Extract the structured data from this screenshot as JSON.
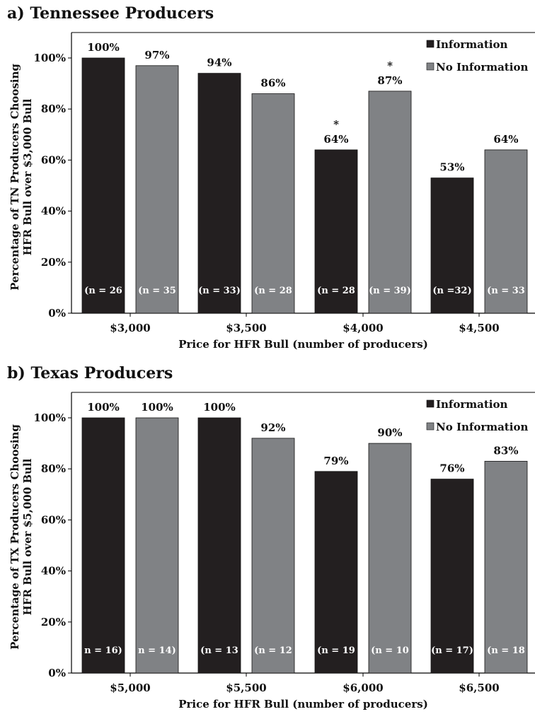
{
  "legend": {
    "info_label": "Information",
    "noinfo_label": "No Information"
  },
  "colors": {
    "info": "#231f20",
    "noinfo": "#808285",
    "axis": "#000000"
  },
  "chart_data": [
    {
      "type": "bar",
      "title": "a) Tennessee Producers",
      "xlabel": "Price for HFR Bull (number of producers)",
      "ylabel_line1": "Percentage of TN Producers Choosing",
      "ylabel_line2": "HFR Bull over $3,000 Bull",
      "ylim": [
        0,
        100
      ],
      "y_ticks": [
        "0%",
        "20%",
        "40%",
        "60%",
        "80%",
        "100%"
      ],
      "categories": [
        "$3,000",
        "$3,500",
        "$4,000",
        "$4,500"
      ],
      "legend_position": "top-right",
      "series": [
        {
          "name": "Information",
          "values": [
            100,
            94,
            64,
            53
          ],
          "value_labels": [
            "100%",
            "94%",
            "64%",
            "53%"
          ],
          "n_labels": [
            "(n = 26",
            "(n = 33)",
            "(n = 28",
            "(n =32)"
          ],
          "stars": [
            "",
            "",
            "*",
            ""
          ]
        },
        {
          "name": "No Information",
          "values": [
            97,
            86,
            87,
            64
          ],
          "value_labels": [
            "97%",
            "86%",
            "87%",
            "64%"
          ],
          "n_labels": [
            "(n = 35",
            "(n = 28",
            "(n = 39)",
            "(n = 33"
          ],
          "stars": [
            "",
            "",
            "*",
            ""
          ]
        }
      ]
    },
    {
      "type": "bar",
      "title": "b) Texas Producers",
      "xlabel": "Price for HFR Bull (number of producers)",
      "ylabel_line1": "Percentage of TX Producers Choosing",
      "ylabel_line2": "HFR Bull over $5,000 Bull",
      "ylim": [
        0,
        100
      ],
      "y_ticks": [
        "0%",
        "20%",
        "40%",
        "60%",
        "80%",
        "100%"
      ],
      "categories": [
        "$5,000",
        "$5,500",
        "$6,000",
        "$6,500"
      ],
      "legend_position": "top-right",
      "series": [
        {
          "name": "Information",
          "values": [
            100,
            100,
            79,
            76
          ],
          "value_labels": [
            "100%",
            "100%",
            "79%",
            "76%"
          ],
          "n_labels": [
            "n = 16)",
            "(n = 13",
            "(n = 19",
            "(n = 17)"
          ],
          "stars": [
            "",
            "",
            "",
            ""
          ]
        },
        {
          "name": "No Information",
          "values": [
            100,
            92,
            90,
            83
          ],
          "value_labels": [
            "100%",
            "92%",
            "90%",
            "83%"
          ],
          "n_labels": [
            "n = 14)",
            "(n = 12",
            "(n = 10",
            "(n = 18"
          ],
          "stars": [
            "",
            "",
            "",
            ""
          ]
        }
      ]
    }
  ]
}
